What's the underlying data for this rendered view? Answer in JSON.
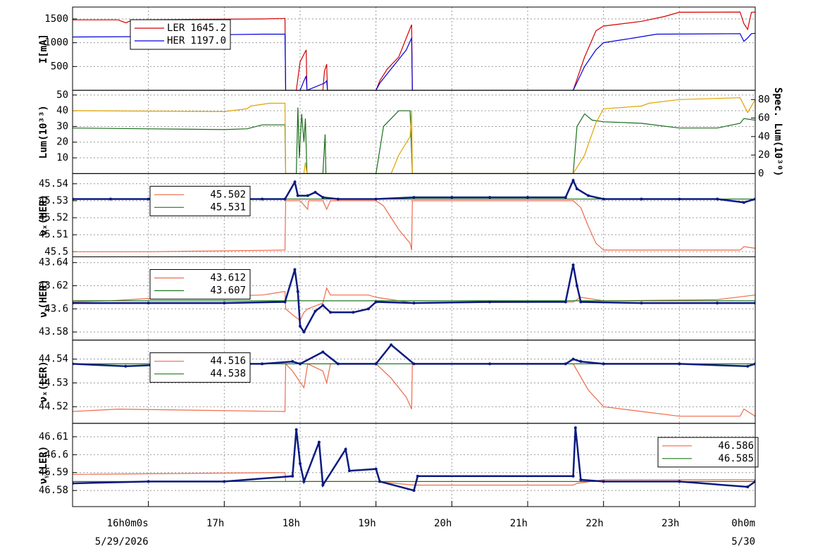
{
  "chart_data": [
    {
      "type": "line",
      "ylabel": "I[mA]",
      "ylim": [
        0,
        1750
      ],
      "yticks": [
        500,
        1000,
        1500
      ],
      "legend": "upper left",
      "grid": true,
      "series": [
        {
          "name": "LER",
          "color": "#d40000",
          "last": 1645.2,
          "x": [
            15,
            15.6,
            15.7,
            15.8,
            16.5,
            17.5,
            17.8,
            17.81,
            17.95,
            18.0,
            18.08,
            18.09,
            18.3,
            18.32,
            18.35,
            18.36,
            19.0,
            19.05,
            19.15,
            19.3,
            19.4,
            19.47,
            19.48,
            21.6,
            21.75,
            21.9,
            22.0,
            22.5,
            22.8,
            23.0,
            23.8,
            23.85,
            23.9,
            23.95,
            24
          ],
          "values": [
            1480,
            1480,
            1420,
            1480,
            1490,
            1500,
            1510,
            0,
            0,
            600,
            850,
            0,
            0,
            400,
            550,
            0,
            0,
            200,
            450,
            700,
            1100,
            1380,
            0,
            0,
            700,
            1250,
            1350,
            1450,
            1550,
            1640,
            1645,
            1400,
            1280,
            1640,
            1645
          ]
        },
        {
          "name": "HER",
          "color": "#0000dd",
          "last": {
            "value": 1197.0,
            "label": "1197.0"
          },
          "x": [
            15,
            16,
            17,
            17.5,
            17.8,
            17.81,
            18.0,
            18.05,
            18.08,
            18.09,
            18.32,
            18.35,
            18.36,
            19.0,
            19.05,
            19.15,
            19.3,
            19.4,
            19.47,
            19.48,
            21.6,
            21.75,
            21.9,
            22.0,
            22.4,
            22.7,
            23.8,
            23.85,
            23.9,
            23.95,
            24
          ],
          "values": [
            1120,
            1130,
            1170,
            1180,
            1180,
            0,
            0,
            200,
            300,
            0,
            150,
            200,
            0,
            0,
            150,
            350,
            650,
            850,
            1100,
            0,
            0,
            500,
            850,
            1000,
            1100,
            1180,
            1190,
            1030,
            1100,
            1190,
            1197
          ]
        }
      ]
    },
    {
      "type": "line",
      "ylabel": "Lum(10³³)",
      "ylim": [
        0,
        53
      ],
      "yticks": [
        10,
        20,
        30,
        40,
        50
      ],
      "y2label": "Spec. Lum(10³⁰)",
      "y2lim": [
        0,
        90
      ],
      "y2ticks": [
        0,
        20,
        40,
        60,
        80
      ],
      "grid": true,
      "series": [
        {
          "color": "#1a6e1a",
          "x": [
            15,
            16,
            17,
            17.3,
            17.5,
            17.8,
            17.81,
            17.95,
            17.97,
            17.99,
            18.02,
            18.05,
            18.07,
            18.09,
            18.3,
            18.33,
            18.34,
            19.0,
            19.1,
            19.2,
            19.3,
            19.45,
            19.48,
            21.6,
            21.65,
            21.75,
            21.85,
            22.0,
            22.5,
            23.0,
            23.5,
            23.8,
            23.85,
            24
          ],
          "values": [
            29,
            28.5,
            28,
            28.5,
            31,
            31,
            0,
            0,
            42,
            10,
            38,
            20,
            35,
            0,
            0,
            25,
            0,
            0,
            30,
            35,
            40,
            40,
            0,
            0,
            30,
            38,
            34,
            33,
            32,
            29,
            29,
            32,
            35,
            34
          ]
        },
        {
          "color": "#e0a400",
          "axis": "y2",
          "x": [
            15,
            17,
            17.3,
            17.35,
            17.6,
            17.8,
            17.81,
            18.05,
            18.07,
            18.09,
            19.2,
            19.3,
            19.45,
            19.47,
            19.48,
            21.6,
            21.75,
            21.9,
            22.0,
            22.5,
            22.6,
            23.0,
            23.8,
            23.9,
            24
          ],
          "values": [
            68,
            67,
            70,
            73,
            76,
            76,
            0,
            0,
            12,
            0,
            0,
            20,
            40,
            68,
            0,
            0,
            20,
            55,
            70,
            73,
            76,
            80,
            82,
            66,
            80
          ]
        }
      ]
    },
    {
      "type": "line",
      "ylabel": "νₓ(HER)",
      "ylim": [
        45.497,
        45.546
      ],
      "yticks": [
        45.5,
        45.51,
        45.52,
        45.53,
        45.54
      ],
      "legend": "upper left",
      "grid": true,
      "series": [
        {
          "color": "#f06a4a",
          "last": 45.502,
          "x": [
            15,
            16,
            17.8,
            17.81,
            18.0,
            18.1,
            18.11,
            18.3,
            18.35,
            18.4,
            19.0,
            19.1,
            19.2,
            19.3,
            19.45,
            19.47,
            19.48,
            21.6,
            21.7,
            21.8,
            21.9,
            22.0,
            23.8,
            23.85,
            24
          ],
          "values": [
            45.5,
            45.5,
            45.501,
            45.53,
            45.53,
            45.525,
            45.53,
            45.53,
            45.525,
            45.53,
            45.53,
            45.527,
            45.52,
            45.513,
            45.505,
            45.501,
            45.53,
            45.53,
            45.526,
            45.515,
            45.505,
            45.501,
            45.501,
            45.503,
            45.502
          ]
        },
        {
          "color": "#1f7a1f",
          "last": 45.531,
          "x": [
            15,
            24
          ],
          "values": [
            45.531,
            45.531
          ]
        },
        {
          "color": "#0a1a80",
          "marker": "dot",
          "x": [
            15,
            15.5,
            16,
            16.5,
            17,
            17.5,
            17.8,
            17.93,
            17.97,
            18.1,
            18.2,
            18.3,
            18.5,
            19.0,
            19.5,
            20,
            20.5,
            21,
            21.5,
            21.6,
            21.65,
            21.8,
            22,
            22.5,
            23,
            23.5,
            23.85,
            24
          ],
          "values": [
            45.531,
            45.531,
            45.531,
            45.531,
            45.531,
            45.531,
            45.531,
            45.541,
            45.533,
            45.533,
            45.535,
            45.532,
            45.531,
            45.531,
            45.532,
            45.532,
            45.532,
            45.532,
            45.532,
            45.542,
            45.537,
            45.533,
            45.531,
            45.531,
            45.531,
            45.531,
            45.529,
            45.531
          ]
        }
      ]
    },
    {
      "type": "line",
      "ylabel": "νᵧ(HER)",
      "ylim": [
        43.573,
        43.645
      ],
      "yticks": [
        43.58,
        43.6,
        43.62,
        43.64
      ],
      "legend": "upper left",
      "grid": true,
      "series": [
        {
          "color": "#f06a4a",
          "last": 43.612,
          "x": [
            15,
            15.5,
            16,
            17.5,
            17.8,
            17.81,
            17.9,
            18.0,
            18.05,
            18.1,
            18.3,
            18.35,
            18.4,
            18.9,
            19.0,
            19.5,
            21.6,
            21.7,
            22.0,
            23.5,
            24
          ],
          "values": [
            43.606,
            43.607,
            43.609,
            43.612,
            43.615,
            43.6,
            43.595,
            43.59,
            43.597,
            43.6,
            43.605,
            43.618,
            43.612,
            43.612,
            43.61,
            43.605,
            43.606,
            43.61,
            43.607,
            43.608,
            43.612
          ]
        },
        {
          "color": "#1f7a1f",
          "last": 43.607,
          "x": [
            15,
            24
          ],
          "values": [
            43.607,
            43.607
          ]
        },
        {
          "color": "#0a1a80",
          "marker": "dot",
          "x": [
            15,
            16,
            17,
            17.8,
            17.93,
            17.97,
            18.0,
            18.05,
            18.2,
            18.3,
            18.4,
            18.7,
            18.9,
            19.0,
            19.5,
            20.5,
            21.5,
            21.6,
            21.65,
            21.7,
            22.5,
            23.5,
            24
          ],
          "values": [
            43.605,
            43.605,
            43.605,
            43.606,
            43.634,
            43.615,
            43.585,
            43.58,
            43.598,
            43.603,
            43.597,
            43.597,
            43.6,
            43.606,
            43.605,
            43.606,
            43.606,
            43.638,
            43.62,
            43.606,
            43.605,
            43.605,
            43.605
          ]
        }
      ]
    },
    {
      "type": "line",
      "ylabel": "νₓ(LER)",
      "ylim": [
        44.513,
        44.548
      ],
      "yticks": [
        44.52,
        44.53,
        44.54
      ],
      "legend": "upper left",
      "grid": true,
      "series": [
        {
          "color": "#f06a4a",
          "last": 44.516,
          "x": [
            15,
            15.6,
            17.8,
            17.81,
            17.9,
            18.05,
            18.1,
            18.3,
            18.35,
            18.4,
            19.0,
            19.2,
            19.4,
            19.47,
            19.48,
            21.6,
            21.8,
            22.0,
            22.5,
            23.0,
            23.8,
            23.85,
            24
          ],
          "values": [
            44.518,
            44.519,
            44.518,
            44.538,
            44.535,
            44.528,
            44.538,
            44.535,
            44.53,
            44.538,
            44.538,
            44.532,
            44.524,
            44.519,
            44.538,
            44.538,
            44.527,
            44.52,
            44.518,
            44.516,
            44.516,
            44.519,
            44.516
          ]
        },
        {
          "color": "#1f7a1f",
          "last": 44.538,
          "x": [
            15,
            24
          ],
          "values": [
            44.538,
            44.538
          ]
        },
        {
          "color": "#0a1a80",
          "marker": "dot",
          "x": [
            15,
            15.7,
            16.5,
            17.5,
            17.9,
            18.0,
            18.3,
            18.5,
            19.0,
            19.2,
            19.5,
            20.5,
            21.5,
            21.6,
            21.7,
            22.0,
            23.0,
            23.9,
            24
          ],
          "values": [
            44.538,
            44.537,
            44.538,
            44.538,
            44.539,
            44.538,
            44.543,
            44.538,
            44.538,
            44.546,
            44.538,
            44.538,
            44.538,
            44.54,
            44.539,
            44.538,
            44.538,
            44.537,
            44.538
          ]
        }
      ]
    },
    {
      "type": "line",
      "ylabel": "νᵧ(LER)",
      "ylim": [
        46.571,
        46.6175
      ],
      "yticks": [
        46.58,
        46.59,
        46.6,
        46.61
      ],
      "legend": "upper right",
      "grid": true,
      "xlim": [
        15,
        24
      ],
      "xticks": [
        {
          "value": 16,
          "label": "16h0m0s"
        },
        {
          "value": 17,
          "label": "17h"
        },
        {
          "value": 18,
          "label": "18h"
        },
        {
          "value": 19,
          "label": "19h"
        },
        {
          "value": 20,
          "label": "20h"
        },
        {
          "value": 21,
          "label": "21h"
        },
        {
          "value": 22,
          "label": "22h"
        },
        {
          "value": 23,
          "label": "23h"
        },
        {
          "value": 24,
          "label": "0h0m"
        }
      ],
      "date_labels": [
        {
          "value": 16,
          "label": "5/29/2026"
        },
        {
          "value": 24,
          "label": "5/30"
        }
      ],
      "series": [
        {
          "color": "#f06a4a",
          "last": 46.586,
          "x": [
            15,
            17.8,
            17.81,
            19.0,
            19.5,
            21.6,
            21.65,
            22.0,
            24
          ],
          "values": [
            46.589,
            46.59,
            46.585,
            46.585,
            46.583,
            46.583,
            46.584,
            46.586,
            46.586
          ]
        },
        {
          "color": "#1f7a1f",
          "last": 46.585,
          "x": [
            15,
            24
          ],
          "values": [
            46.585,
            46.585
          ]
        },
        {
          "color": "#0a1a80",
          "marker": "dot",
          "x": [
            15,
            16,
            17,
            17.9,
            17.95,
            18.0,
            18.05,
            18.25,
            18.3,
            18.6,
            18.65,
            19.0,
            19.05,
            19.5,
            19.55,
            21.6,
            21.63,
            21.7,
            22.0,
            23.0,
            23.9,
            24
          ],
          "values": [
            46.584,
            46.585,
            46.585,
            46.588,
            46.614,
            46.595,
            46.585,
            46.607,
            46.583,
            46.603,
            46.591,
            46.592,
            46.585,
            46.58,
            46.588,
            46.588,
            46.615,
            46.586,
            46.585,
            46.585,
            46.582,
            46.585
          ]
        }
      ]
    }
  ]
}
